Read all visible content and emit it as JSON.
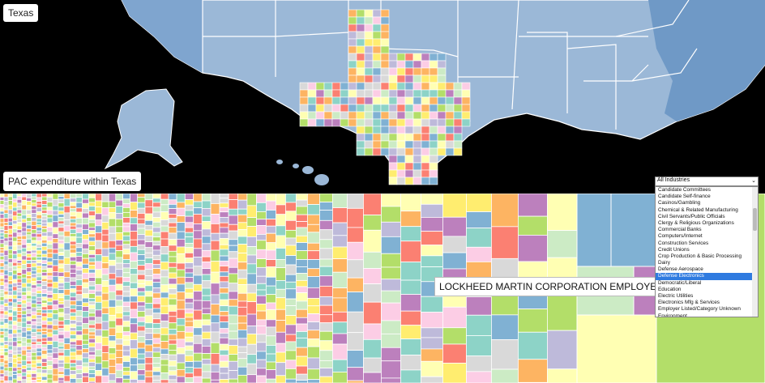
{
  "map": {
    "state_label": "Texas",
    "colors": {
      "ocean": "#000000",
      "state": "#9bb8d7",
      "state_dark": "#6f99c6",
      "border": "#ffffff"
    }
  },
  "treemap": {
    "title": "PAC expenditure within Texas",
    "tooltip": "LOCKHEED MARTIN CORPORATION EMPLOYEES' POLITICAL",
    "palette": [
      "#8dd3c7",
      "#ffffb3",
      "#bebada",
      "#fb8072",
      "#80b1d3",
      "#fdb462",
      "#b3de69",
      "#fccde5",
      "#d9d9d9",
      "#bc80bd",
      "#ccebc5",
      "#ffed6f"
    ]
  },
  "industry_select": {
    "selected_value": "All Industries",
    "options": [
      "Candidate Committees",
      "Candidate Self-finance",
      "Casinos/Gambling",
      "Chemical & Related Manufacturing",
      "Civil Servants/Public Officials",
      "Clergy & Religious Organizations",
      "Commercial Banks",
      "Computers/Internet",
      "Construction Services",
      "Credit Unions",
      "Crop Production & Basic Processing",
      "Dairy",
      "Defense Aerospace",
      "Defense Electronics",
      "Democratic/Liberal",
      "Education",
      "Electric Utilities",
      "Electronics Mfg & Services",
      "Employer Listed/Category Unknown",
      "Environment"
    ],
    "highlighted": "Defense Electronics"
  }
}
